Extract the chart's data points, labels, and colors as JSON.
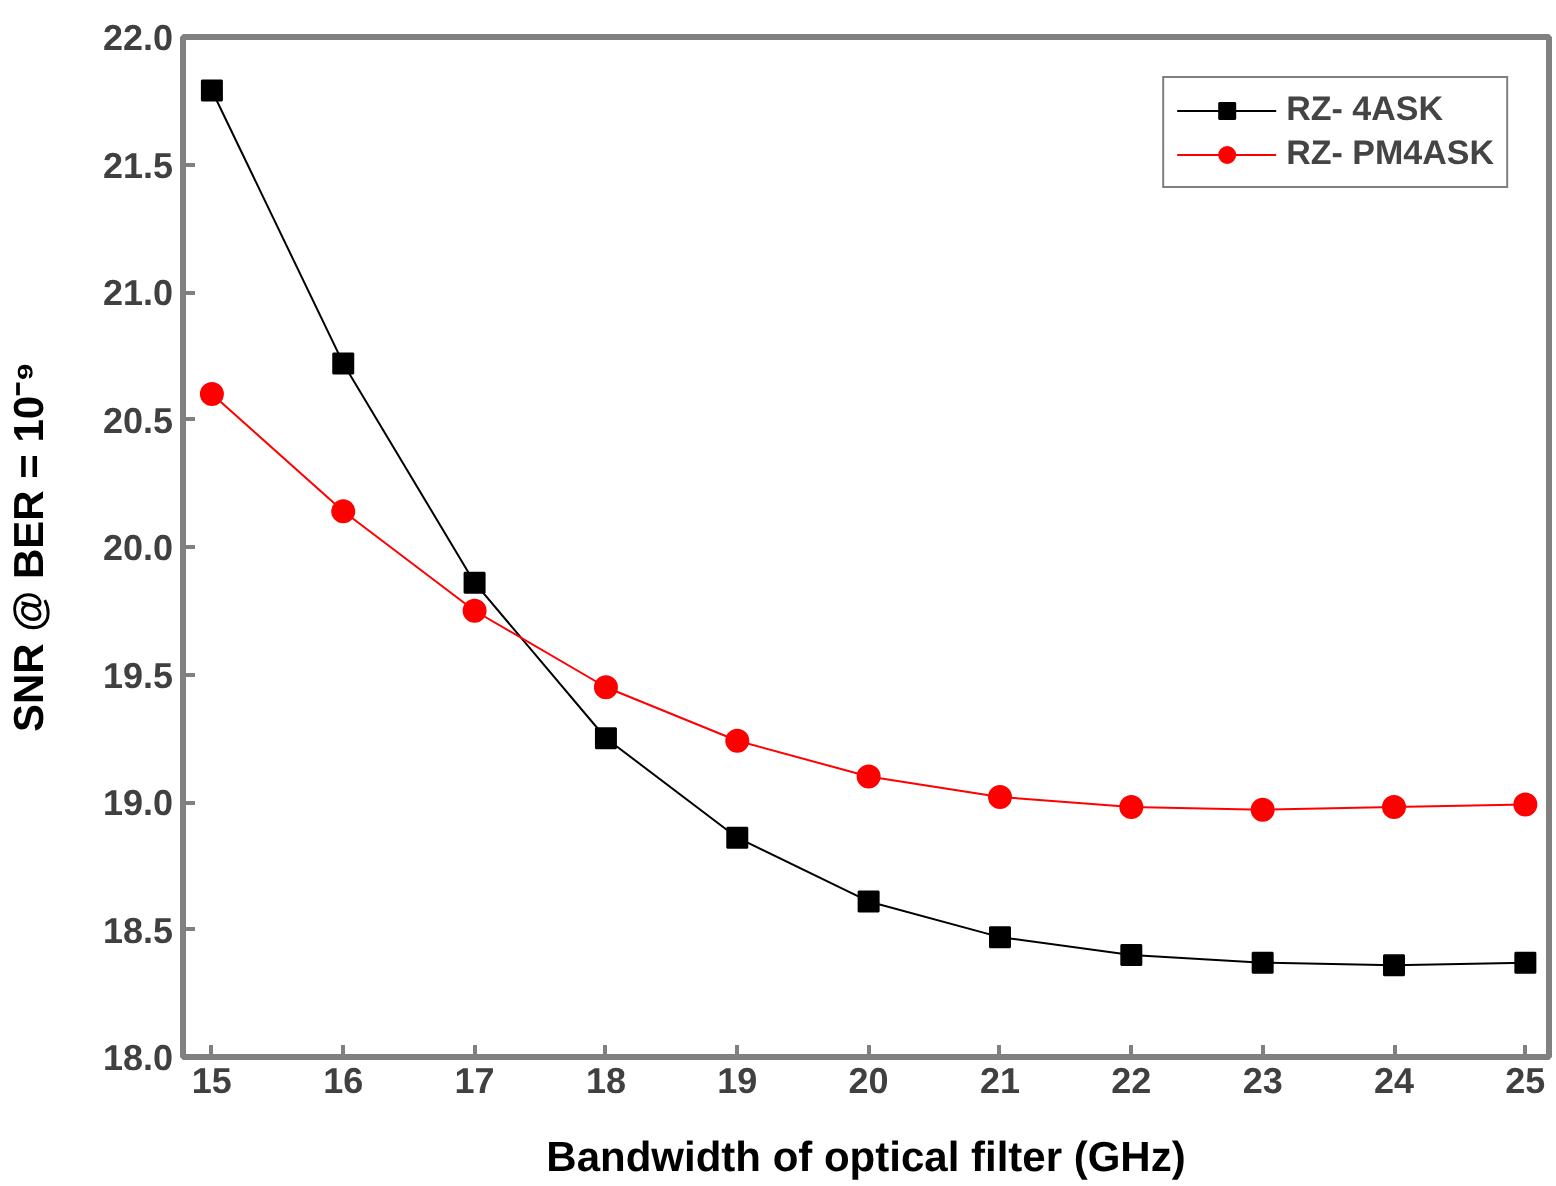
{
  "chart_data": {
    "type": "line",
    "xlabel": "Bandwidth of optical filter (GHz)",
    "ylabel": "SNR @ BER = 10⁻⁹",
    "x": [
      15,
      16,
      17,
      18,
      19,
      20,
      21,
      22,
      23,
      24,
      25
    ],
    "xlim": [
      14.78,
      25.18
    ],
    "xticks": [
      15,
      16,
      17,
      18,
      19,
      20,
      21,
      22,
      23,
      24,
      25
    ],
    "ylim": [
      18.0,
      22.0
    ],
    "yticks": [
      {
        "value": 18,
        "label": "18.0"
      },
      18.5,
      {
        "value": 19,
        "label": "19.0"
      },
      19.5,
      {
        "value": 20,
        "label": "20.0"
      },
      20.5,
      {
        "value": 21,
        "label": "21.0"
      },
      21.5,
      {
        "value": 22,
        "label": "22.0"
      }
    ],
    "series": [
      {
        "name": "RZ- 4ASK",
        "color": "#000000",
        "marker": "square",
        "values": [
          21.79,
          20.72,
          19.86,
          19.25,
          18.86,
          18.61,
          18.47,
          18.4,
          18.37,
          18.36,
          18.37
        ]
      },
      {
        "name": "RZ- PM4ASK",
        "color": "#ff0000",
        "marker": "circle",
        "values": [
          20.6,
          20.14,
          19.75,
          19.45,
          19.24,
          19.1,
          19.02,
          18.98,
          18.97,
          18.98,
          18.99
        ]
      }
    ],
    "legend": "top right",
    "grid": false,
    "line_style": "solid"
  }
}
